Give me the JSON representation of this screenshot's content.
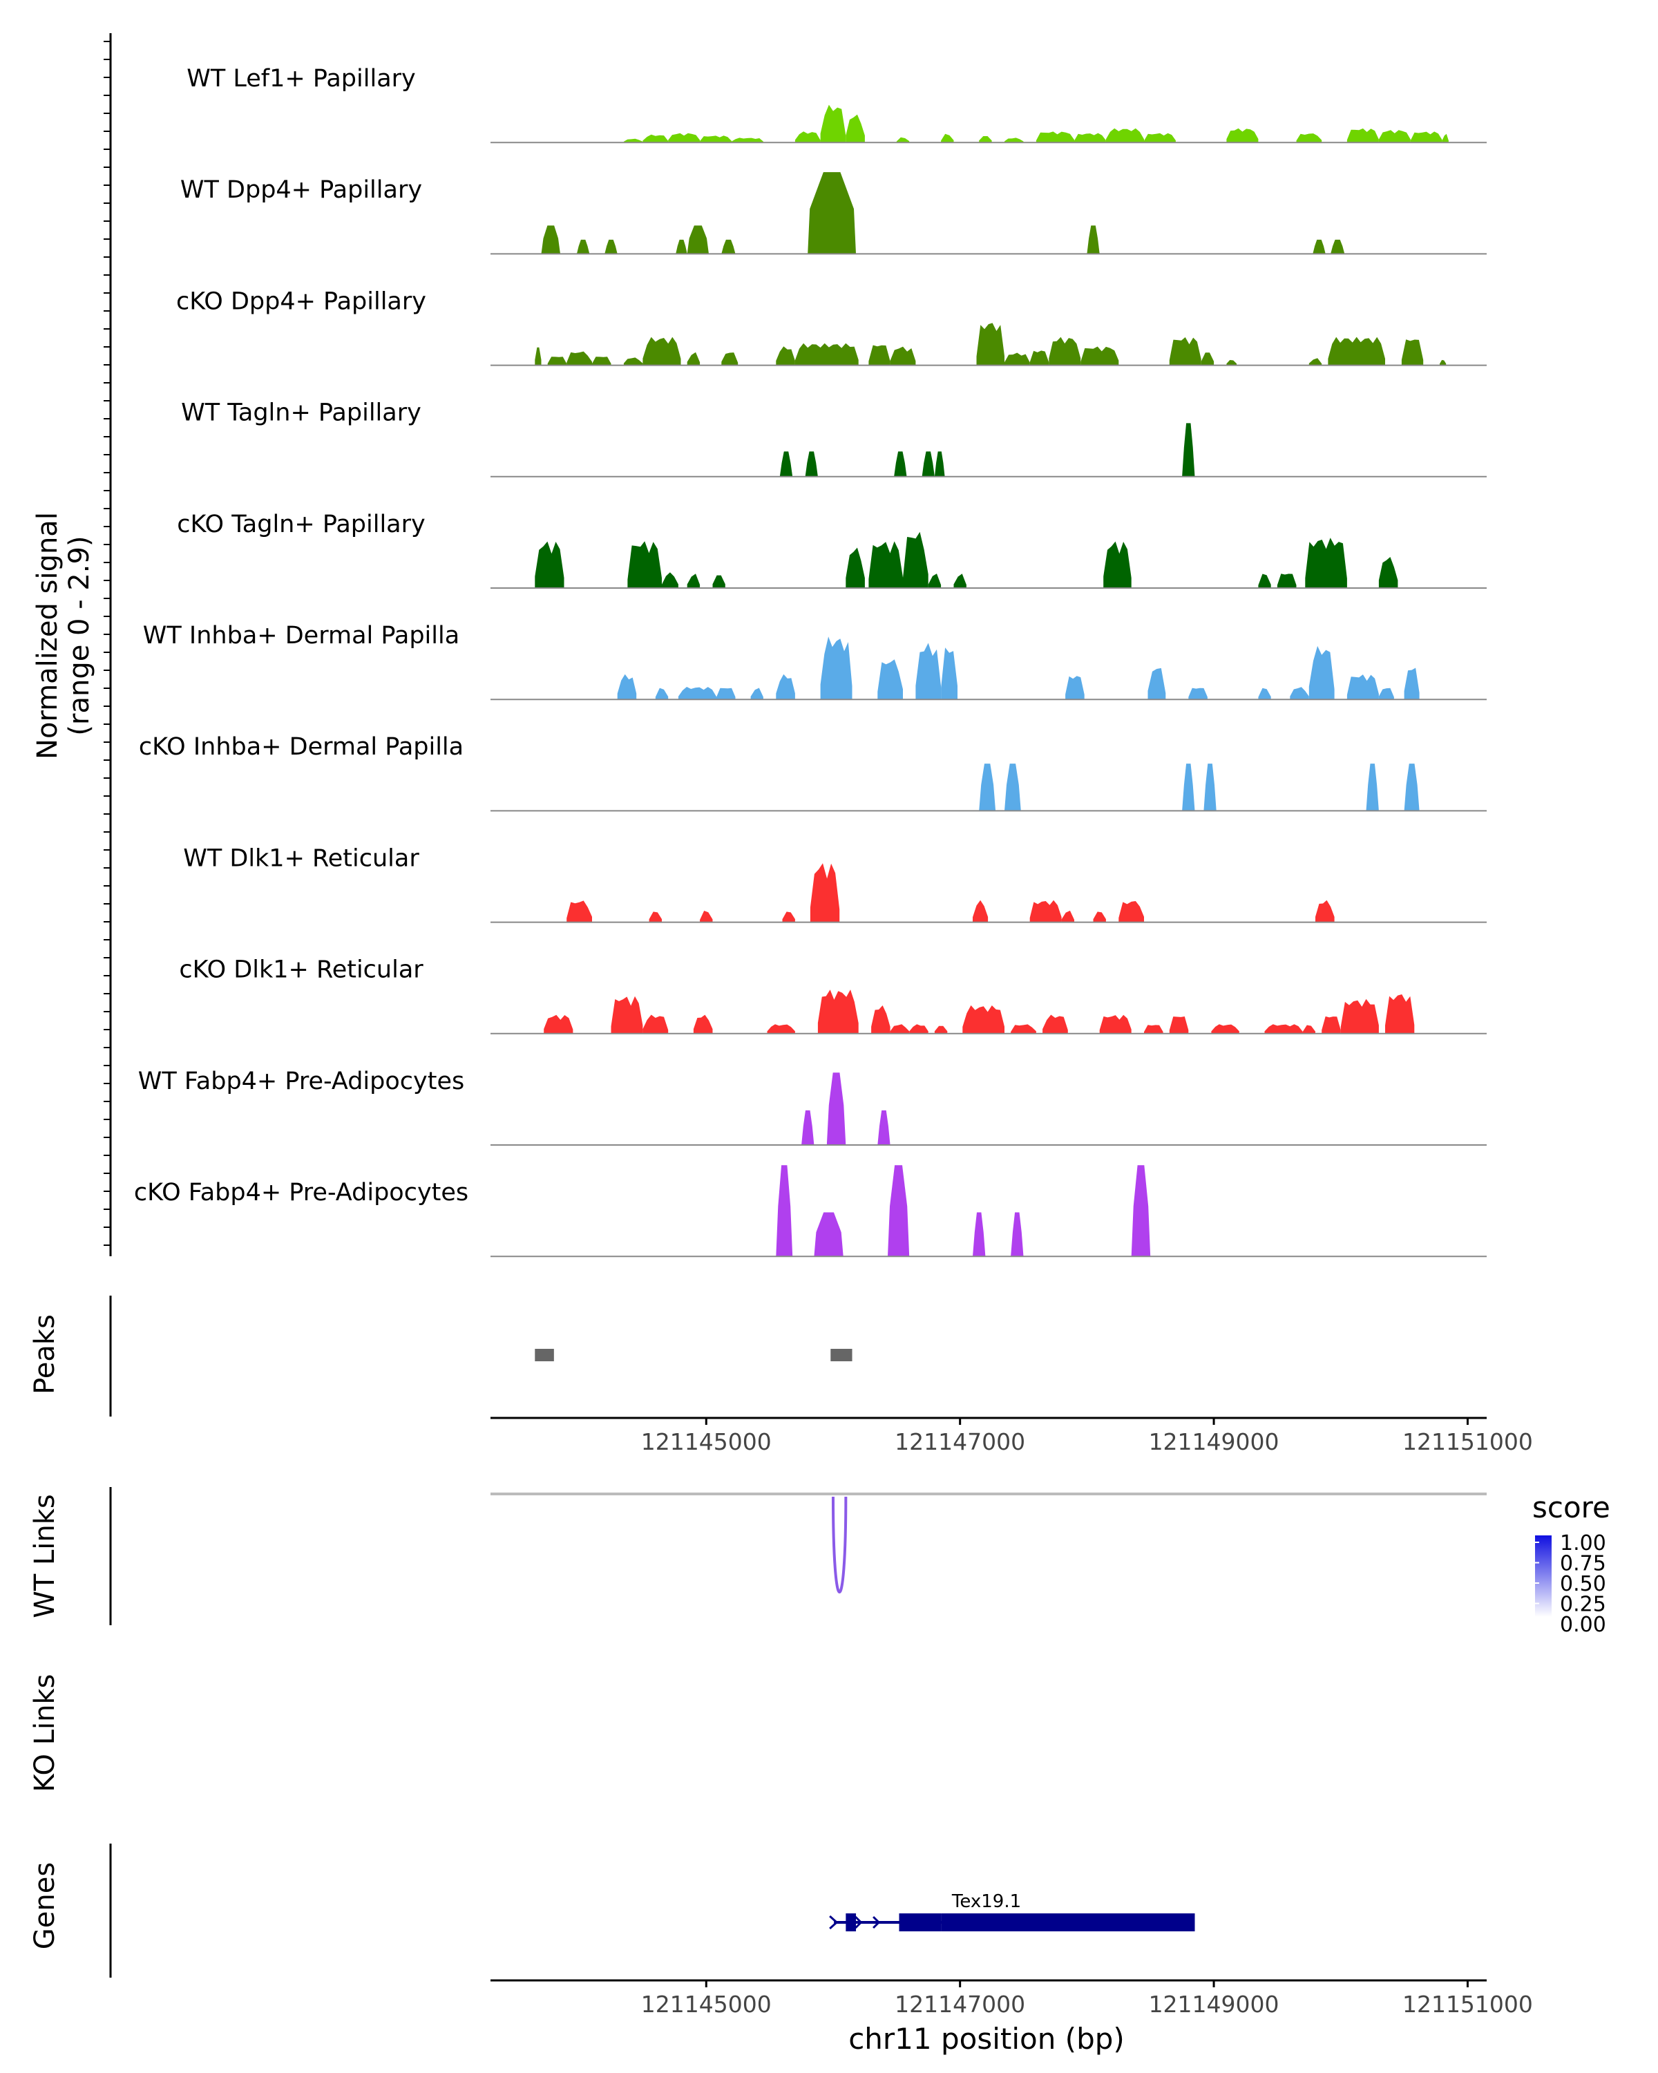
{
  "chart_data": {
    "type": "area",
    "title": "",
    "ylabel": "Normalized signal",
    "ylabel_range": "(range 0 - 2.9)",
    "ylim": [
      0,
      2.9
    ],
    "xlabel": "chr11 position (bp)",
    "xlim": [
      121143300,
      121151150
    ],
    "x_ticks": [
      121145000,
      121147000,
      121149000,
      121151000
    ],
    "x_tick_labels": [
      "121145000",
      "121147000",
      "121149000",
      "121151000"
    ],
    "tracks": [
      {
        "name": "WT Lef1+ Papillary",
        "color": "#6fd400",
        "style": "dense",
        "segments": [
          [
            121143650,
            121143750,
            0.0
          ],
          [
            121144350,
            121144500,
            0.12
          ],
          [
            121144500,
            121144700,
            0.25
          ],
          [
            121144700,
            121144950,
            0.3
          ],
          [
            121144950,
            121145200,
            0.22
          ],
          [
            121145200,
            121145450,
            0.15
          ],
          [
            121145700,
            121145900,
            0.35
          ],
          [
            121145900,
            121146100,
            1.2
          ],
          [
            121146100,
            121146250,
            0.9
          ],
          [
            121146500,
            121146600,
            0.18
          ],
          [
            121146850,
            121146950,
            0.3
          ],
          [
            121147150,
            121147250,
            0.25
          ],
          [
            121147350,
            121147500,
            0.15
          ],
          [
            121147600,
            121147900,
            0.35
          ],
          [
            121147900,
            121148150,
            0.3
          ],
          [
            121148150,
            121148450,
            0.45
          ],
          [
            121148450,
            121148700,
            0.3
          ],
          [
            121149100,
            121149350,
            0.45
          ],
          [
            121149650,
            121149850,
            0.3
          ],
          [
            121150050,
            121150300,
            0.45
          ],
          [
            121150300,
            121150550,
            0.4
          ],
          [
            121150550,
            121150800,
            0.35
          ],
          [
            121150800,
            121150850,
            0.3
          ]
        ]
      },
      {
        "name": "WT Dpp4+ Papillary",
        "color": "#4b8a00",
        "style": "sparse",
        "segments": [
          [
            121143700,
            121143850,
            0.9
          ],
          [
            121143980,
            121144080,
            0.45
          ],
          [
            121144200,
            121144300,
            0.45
          ],
          [
            121144760,
            121144850,
            0.45
          ],
          [
            121144850,
            121145020,
            0.9
          ],
          [
            121145120,
            121145230,
            0.45
          ],
          [
            121145800,
            121146180,
            2.6
          ],
          [
            121148000,
            121148100,
            0.9
          ],
          [
            121149780,
            121149880,
            0.45
          ],
          [
            121149920,
            121150030,
            0.45
          ]
        ]
      },
      {
        "name": "cKO Dpp4+ Papillary",
        "color": "#4b8a00",
        "style": "dense",
        "segments": [
          [
            121143650,
            121143700,
            0.7
          ],
          [
            121143750,
            121143900,
            0.3
          ],
          [
            121143900,
            121144100,
            0.45
          ],
          [
            121144100,
            121144250,
            0.3
          ],
          [
            121144350,
            121144500,
            0.25
          ],
          [
            121144500,
            121144800,
            0.9
          ],
          [
            121144850,
            121144950,
            0.45
          ],
          [
            121145120,
            121145250,
            0.45
          ],
          [
            121145550,
            121145700,
            0.6
          ],
          [
            121145700,
            121146200,
            0.7
          ],
          [
            121146280,
            121146450,
            0.7
          ],
          [
            121146450,
            121146650,
            0.6
          ],
          [
            121147130,
            121147350,
            1.4
          ],
          [
            121147350,
            121147550,
            0.4
          ],
          [
            121147550,
            121147700,
            0.5
          ],
          [
            121147700,
            121147950,
            0.9
          ],
          [
            121147950,
            121148250,
            0.6
          ],
          [
            121148650,
            121148900,
            0.9
          ],
          [
            121148900,
            121149000,
            0.5
          ],
          [
            121149100,
            121149180,
            0.2
          ],
          [
            121149750,
            121149850,
            0.25
          ],
          [
            121149900,
            121150350,
            0.9
          ],
          [
            121150480,
            121150650,
            0.9
          ],
          [
            121150780,
            121150830,
            0.2
          ]
        ]
      },
      {
        "name": "WT Tagln+ Papillary",
        "color": "#006400",
        "style": "sparse",
        "segments": [
          [
            121145580,
            121145680,
            0.8
          ],
          [
            121145780,
            121145880,
            0.8
          ],
          [
            121146480,
            121146580,
            0.8
          ],
          [
            121146700,
            121146800,
            0.8
          ],
          [
            121146800,
            121146880,
            0.8
          ],
          [
            121148750,
            121148850,
            1.7
          ]
        ]
      },
      {
        "name": "cKO Tagln+ Papillary",
        "color": "#006400",
        "style": "dense",
        "segments": [
          [
            121143650,
            121143880,
            1.5
          ],
          [
            121144380,
            121144650,
            1.5
          ],
          [
            121144650,
            121144780,
            0.5
          ],
          [
            121144850,
            121144950,
            0.5
          ],
          [
            121145050,
            121145150,
            0.5
          ],
          [
            121146100,
            121146250,
            1.3
          ],
          [
            121146280,
            121146550,
            1.5
          ],
          [
            121146550,
            121146750,
            1.8
          ],
          [
            121146750,
            121146850,
            0.5
          ],
          [
            121146950,
            121147050,
            0.5
          ],
          [
            121148130,
            121148350,
            1.5
          ],
          [
            121149350,
            121149450,
            0.5
          ],
          [
            121149500,
            121149650,
            0.5
          ],
          [
            121149720,
            121150050,
            1.6
          ],
          [
            121150300,
            121150450,
            1.0
          ]
        ]
      },
      {
        "name": "WT Inhba+ Dermal Papilla",
        "color": "#5aabe8",
        "style": "dense",
        "segments": [
          [
            121144300,
            121144450,
            0.8
          ],
          [
            121144600,
            121144700,
            0.4
          ],
          [
            121144780,
            121145080,
            0.4
          ],
          [
            121145080,
            121145230,
            0.4
          ],
          [
            121145350,
            121145450,
            0.4
          ],
          [
            121145550,
            121145700,
            0.8
          ],
          [
            121145900,
            121146150,
            2.0
          ],
          [
            121146350,
            121146550,
            1.3
          ],
          [
            121146650,
            121146850,
            1.8
          ],
          [
            121146850,
            121146980,
            1.8
          ],
          [
            121147830,
            121147980,
            0.8
          ],
          [
            121148480,
            121148620,
            1.1
          ],
          [
            121148800,
            121148950,
            0.4
          ],
          [
            121149350,
            121149450,
            0.4
          ],
          [
            121149600,
            121149750,
            0.4
          ],
          [
            121149750,
            121149950,
            1.7
          ],
          [
            121150050,
            121150300,
            0.8
          ],
          [
            121150300,
            121150420,
            0.4
          ],
          [
            121150500,
            121150620,
            1.1
          ]
        ]
      },
      {
        "name": "cKO Inhba+ Dermal Papilla",
        "color": "#5aabe8",
        "style": "sparse",
        "segments": [
          [
            121147150,
            121147280,
            1.5
          ],
          [
            121147350,
            121147480,
            1.5
          ],
          [
            121148750,
            121148850,
            1.5
          ],
          [
            121148920,
            121149020,
            1.5
          ],
          [
            121150200,
            121150300,
            1.5
          ],
          [
            121150500,
            121150620,
            1.5
          ]
        ]
      },
      {
        "name": "WT Dlk1+ Reticular",
        "color": "#fb3030",
        "style": "dense",
        "segments": [
          [
            121143900,
            121144100,
            0.7
          ],
          [
            121144550,
            121144650,
            0.4
          ],
          [
            121144950,
            121145050,
            0.4
          ],
          [
            121145600,
            121145700,
            0.4
          ],
          [
            121145820,
            121146050,
            1.9
          ],
          [
            121147100,
            121147220,
            0.7
          ],
          [
            121147550,
            121147800,
            0.7
          ],
          [
            121147800,
            121147900,
            0.4
          ],
          [
            121148050,
            121148150,
            0.4
          ],
          [
            121148250,
            121148450,
            0.7
          ],
          [
            121149800,
            121149950,
            0.7
          ]
        ]
      },
      {
        "name": "cKO Dlk1+ Reticular",
        "color": "#fb3030",
        "style": "dense",
        "segments": [
          [
            121143720,
            121143950,
            0.6
          ],
          [
            121144250,
            121144500,
            1.2
          ],
          [
            121144500,
            121144700,
            0.6
          ],
          [
            121144900,
            121145050,
            0.6
          ],
          [
            121145480,
            121145700,
            0.3
          ],
          [
            121145880,
            121146200,
            1.4
          ],
          [
            121146300,
            121146450,
            0.9
          ],
          [
            121146450,
            121146600,
            0.3
          ],
          [
            121146600,
            121146750,
            0.3
          ],
          [
            121146800,
            121146900,
            0.3
          ],
          [
            121147020,
            121147350,
            0.9
          ],
          [
            121147400,
            121147600,
            0.3
          ],
          [
            121147650,
            121147850,
            0.6
          ],
          [
            121148100,
            121148350,
            0.6
          ],
          [
            121148450,
            121148600,
            0.3
          ],
          [
            121148650,
            121148800,
            0.6
          ],
          [
            121148980,
            121149200,
            0.3
          ],
          [
            121149400,
            121149700,
            0.3
          ],
          [
            121149700,
            121149800,
            0.3
          ],
          [
            121149850,
            121150000,
            0.6
          ],
          [
            121150000,
            121150300,
            1.1
          ],
          [
            121150350,
            121150580,
            1.3
          ]
        ]
      },
      {
        "name": "WT Fabp4+ Pre-Adipocytes",
        "color": "#b040ee",
        "style": "sparse",
        "segments": [
          [
            121145750,
            121145850,
            1.1
          ],
          [
            121145950,
            121146100,
            2.3
          ],
          [
            121146350,
            121146450,
            1.1
          ]
        ]
      },
      {
        "name": "cKO Fabp4+ Pre-Adipocytes",
        "color": "#b040ee",
        "style": "sparse",
        "segments": [
          [
            121145550,
            121145680,
            2.9
          ],
          [
            121145850,
            121146080,
            1.4
          ],
          [
            121146430,
            121146600,
            2.9
          ],
          [
            121147100,
            121147200,
            1.4
          ],
          [
            121147400,
            121147500,
            1.4
          ],
          [
            121148350,
            121148500,
            2.9
          ]
        ]
      }
    ],
    "peaks": {
      "label": "Peaks",
      "regions": [
        [
          121143650,
          121143800
        ],
        [
          121145980,
          121146150
        ]
      ]
    },
    "wt_links": {
      "label": "WT Links",
      "links": [
        {
          "start": 121146000,
          "end": 121146100,
          "score": 0.55
        }
      ]
    },
    "ko_links": {
      "label": "KO Links",
      "links": []
    },
    "genes": {
      "label": "Genes",
      "gene_name": "Tex19.1",
      "tx_start": 121146050,
      "tx_end": 121148850,
      "strand": "+",
      "exons": [
        [
          121146100,
          121146180
        ],
        [
          121146520,
          121146850
        ],
        [
          121146850,
          121148850
        ]
      ]
    },
    "legend": {
      "title": "score",
      "ticks": [
        "1.00",
        "0.75",
        "0.50",
        "0.25",
        "0.00"
      ],
      "color_low": "#ffffff",
      "color_high": "#1010e0",
      "link_color": "#8a5ae8"
    },
    "axis_color": "#000000",
    "baseline_color": "#888888"
  }
}
